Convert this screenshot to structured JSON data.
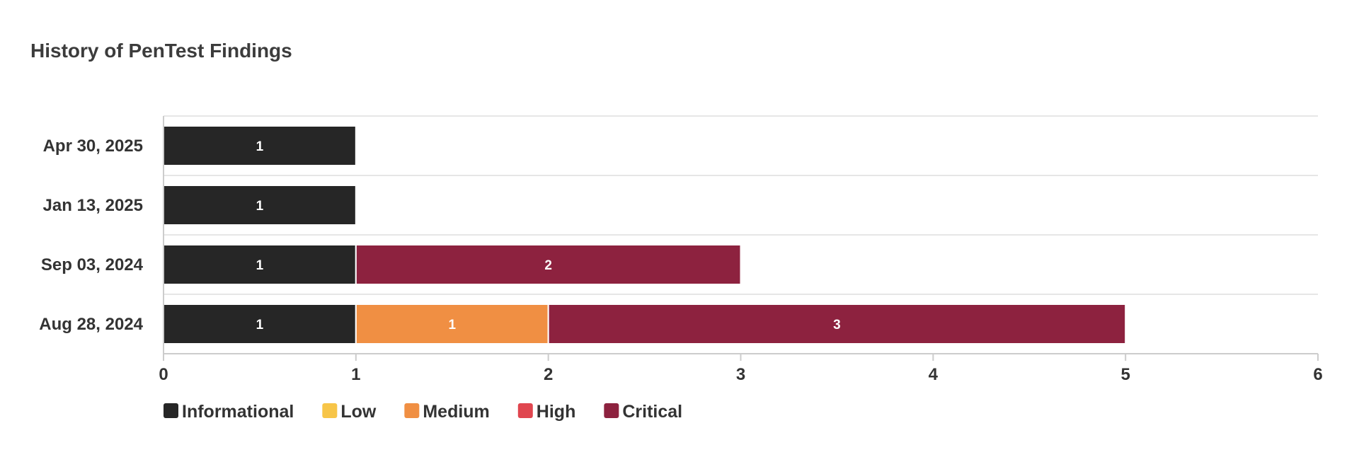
{
  "chart_data": {
    "type": "bar",
    "orientation": "horizontal",
    "stacked": true,
    "title": "History of PenTest Findings",
    "categories": [
      "Apr 30, 2025",
      "Jan 13, 2025",
      "Sep 03, 2024",
      "Aug 28, 2024"
    ],
    "series": [
      {
        "name": "Informational",
        "color": "#262626",
        "values": [
          1,
          1,
          1,
          1
        ]
      },
      {
        "name": "Low",
        "color": "#f7c548",
        "values": [
          0,
          0,
          0,
          0
        ]
      },
      {
        "name": "Medium",
        "color": "#f08f43",
        "values": [
          0,
          0,
          0,
          1
        ]
      },
      {
        "name": "High",
        "color": "#e0464f",
        "values": [
          0,
          0,
          0,
          0
        ]
      },
      {
        "name": "Critical",
        "color": "#8d223f",
        "values": [
          0,
          0,
          2,
          3
        ]
      }
    ],
    "xlim": [
      0,
      6
    ],
    "xticks": [
      0,
      1,
      2,
      3,
      4,
      5,
      6
    ],
    "grid": true,
    "legend_position": "bottom-left"
  }
}
